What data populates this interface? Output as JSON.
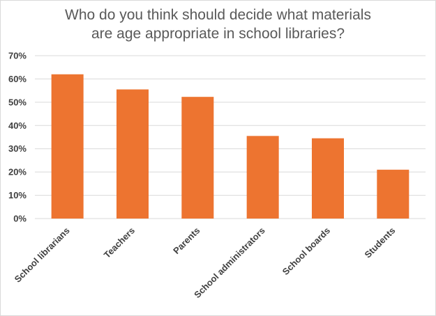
{
  "chart_data": {
    "type": "bar",
    "title_lines": [
      "Who do you think should decide what materials",
      "are age appropriate in school libraries?"
    ],
    "categories": [
      "School librarians",
      "Teachers",
      "Parents",
      "School administrators",
      "School boards",
      "Students"
    ],
    "values": [
      62,
      55.5,
      52.3,
      35.5,
      34.5,
      21
    ],
    "ylim": [
      0,
      70
    ],
    "yticks": [
      "0%",
      "10%",
      "20%",
      "30%",
      "40%",
      "50%",
      "60%",
      "70%"
    ],
    "grid": true,
    "bar_color": "#ED7430",
    "grid_color": "#d9d9d9"
  }
}
